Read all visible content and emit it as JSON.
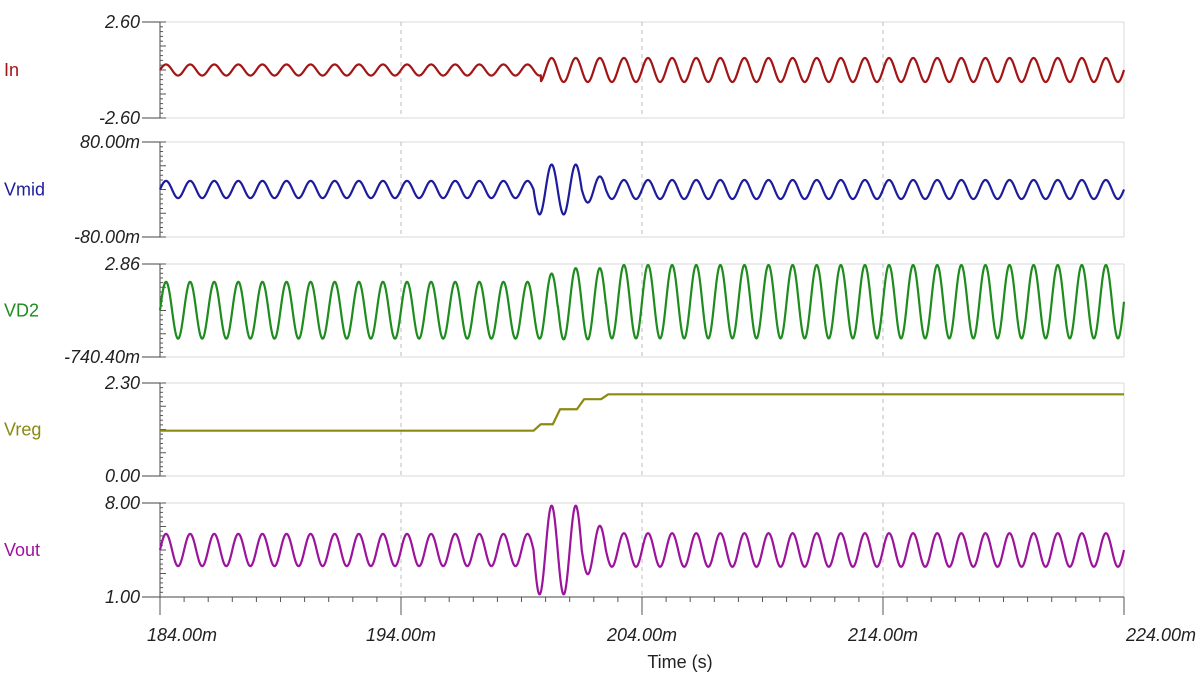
{
  "chart_data": {
    "type": "line",
    "xlabel": "Time (s)",
    "x_range": [
      0.184,
      0.224
    ],
    "x_ticks": [
      {
        "value": 0.184,
        "label": "184.00m"
      },
      {
        "value": 0.194,
        "label": "194.00m"
      },
      {
        "value": 0.204,
        "label": "204.00m"
      },
      {
        "value": 0.214,
        "label": "214.00m"
      },
      {
        "value": 0.224,
        "label": "224.00m"
      }
    ],
    "grid": true,
    "panels": [
      {
        "name": "In",
        "color": "#a31515",
        "ylim": [
          -2.6,
          2.6
        ],
        "y_tick_labels": [
          "2.60",
          "-2.60"
        ],
        "waveform": {
          "kind": "sine",
          "freq_hz": 1000,
          "offset": 0,
          "segments": [
            {
              "t_start": 0.184,
              "t_end": 0.1998,
              "amplitude": 0.3
            },
            {
              "t_start": 0.1998,
              "t_end": 0.224,
              "amplitude": 0.65
            }
          ]
        }
      },
      {
        "name": "Vmid",
        "color": "#1c1c9c",
        "ylim": [
          -0.08,
          0.08
        ],
        "y_tick_labels": [
          "80.00m",
          "-80.00m"
        ],
        "waveform": {
          "kind": "sine",
          "freq_hz": 1000,
          "offset": 0,
          "segments": [
            {
              "t_start": 0.184,
              "t_end": 0.1995,
              "amplitude": 0.0145
            },
            {
              "t_start": 0.1995,
              "t_end": 0.2015,
              "amplitude": 0.042
            },
            {
              "t_start": 0.2015,
              "t_end": 0.2025,
              "amplitude": 0.022
            },
            {
              "t_start": 0.2025,
              "t_end": 0.224,
              "amplitude": 0.016
            }
          ]
        }
      },
      {
        "name": "VD2",
        "color": "#1e8c1e",
        "ylim": [
          -0.7404,
          2.86
        ],
        "y_tick_labels": [
          "2.86",
          "-740.40m"
        ],
        "waveform": {
          "kind": "sine",
          "freq_hz": 1000,
          "segments": [
            {
              "t_start": 0.184,
              "t_end": 0.1998,
              "offset": 1.07,
              "amplitude": 1.1
            },
            {
              "t_start": 0.1998,
              "t_end": 0.2005,
              "offset": 1.22,
              "amplitude": 1.27
            },
            {
              "t_start": 0.2005,
              "t_end": 0.2025,
              "offset": 1.32,
              "amplitude": 1.38
            },
            {
              "t_start": 0.2025,
              "t_end": 0.224,
              "offset": 1.4,
              "amplitude": 1.42
            }
          ]
        }
      },
      {
        "name": "Vreg",
        "color": "#8a8a10",
        "ylim": [
          0.0,
          2.3
        ],
        "y_tick_labels": [
          "2.30",
          "0.00"
        ],
        "waveform": {
          "kind": "steps",
          "points": [
            {
              "t": 0.184,
              "value": 1.12
            },
            {
              "t": 0.1995,
              "value": 1.12
            },
            {
              "t": 0.1998,
              "value": 1.28
            },
            {
              "t": 0.2003,
              "value": 1.28
            },
            {
              "t": 0.2006,
              "value": 1.65
            },
            {
              "t": 0.2013,
              "value": 1.65
            },
            {
              "t": 0.2016,
              "value": 1.9
            },
            {
              "t": 0.2023,
              "value": 1.9
            },
            {
              "t": 0.2026,
              "value": 2.02
            },
            {
              "t": 0.224,
              "value": 2.02
            }
          ]
        }
      },
      {
        "name": "Vout",
        "color": "#9c139c",
        "ylim": [
          1.0,
          8.0
        ],
        "y_tick_labels": [
          "8.00",
          "1.00"
        ],
        "waveform": {
          "kind": "sine",
          "freq_hz": 1000,
          "offset": 4.5,
          "segments": [
            {
              "t_start": 0.184,
              "t_end": 0.1995,
              "amplitude": 1.2
            },
            {
              "t_start": 0.1995,
              "t_end": 0.2015,
              "amplitude": 3.3
            },
            {
              "t_start": 0.2015,
              "t_end": 0.2025,
              "amplitude": 1.8
            },
            {
              "t_start": 0.2025,
              "t_end": 0.224,
              "amplitude": 1.25
            }
          ]
        }
      }
    ]
  }
}
